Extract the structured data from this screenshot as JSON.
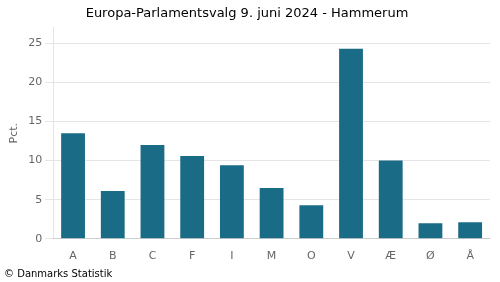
{
  "chart_data": {
    "type": "bar",
    "title": "Europa-Parlamentsvalg 9. juni 2024 - Hammerum",
    "categories": [
      "A",
      "B",
      "C",
      "F",
      "I",
      "M",
      "O",
      "V",
      "Æ",
      "Ø",
      "Å"
    ],
    "values": [
      13.5,
      6.1,
      12.0,
      10.6,
      9.4,
      6.5,
      4.3,
      24.3,
      10.0,
      2.0,
      2.1
    ],
    "color": "#1a6b85",
    "ylabel": "Pct.",
    "ylim": [
      0,
      27
    ],
    "yticks": [
      0,
      5,
      10,
      15,
      20,
      25
    ],
    "grid": true,
    "footer": "© Danmarks Statistik"
  }
}
